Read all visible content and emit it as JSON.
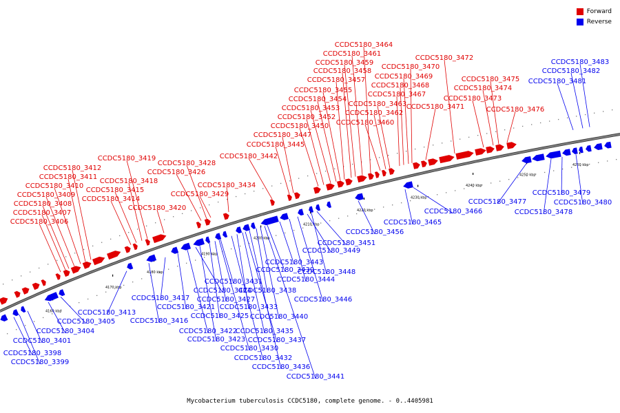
{
  "caption": "Mycobacterium tuberculosis CCDC5180, complete genome. - 0..4405981",
  "legend": [
    {
      "label": "Forward",
      "color": "#e00000"
    },
    {
      "label": "Reverse",
      "color": "#0000ee"
    }
  ],
  "colors": {
    "forward": "#e00000",
    "reverse": "#0000ee",
    "backbone": "#808080"
  },
  "ticks": [
    "4160 kbp",
    "4170 kbp",
    "4180 kbp",
    "4190 kbp",
    "4200 kbp",
    "4210 kbp",
    "4220 kbp",
    "4230 kbp",
    "4240 kbp",
    "4250 kbp",
    "4260 kbp"
  ],
  "forward_genes": [
    "CCDC5180_3406",
    "CCDC5180_3407",
    "CCDC5180_3408",
    "CCDC5180_3409",
    "CCDC5180_3410",
    "CCDC5180_3411",
    "CCDC5180_3412",
    "CCDC5180_3414",
    "CCDC5180_3415",
    "CCDC5180_3418",
    "CCDC5180_3419",
    "CCDC5180_3420",
    "CCDC5180_3426",
    "CCDC5180_3428",
    "CCDC5180_3429",
    "CCDC5180_3434",
    "CCDC5180_3442",
    "CCDC5180_3445",
    "CCDC5180_3447",
    "CCDC5180_3450",
    "CCDC5180_3452",
    "CCDC5180_3453",
    "CCDC5180_3454",
    "CCDC5180_3455",
    "CCDC5180_3457",
    "CCDC5180_3458",
    "CCDC5180_3459",
    "CCDC5180_3461",
    "CCDC5180_3464",
    "CCDC5180_3460",
    "CCDC5180_3462",
    "CCDC5180_3463",
    "CCDC5180_3467",
    "CCDC5180_3468",
    "CCDC5180_3469",
    "CCDC5180_3470",
    "CCDC5180_3471",
    "CCDC5180_3472",
    "CCDC5180_3473",
    "CCDC5180_3474",
    "CCDC5180_3475",
    "CCDC5180_3476"
  ],
  "reverse_genes": [
    "CCDC5180_3398",
    "CCDC5180_3399",
    "CCDC5180_3401",
    "CCDC5180_3404",
    "CCDC5180_3405",
    "CCDC5180_3413",
    "CCDC5180_3416",
    "CCDC5180_3417",
    "CCDC5180_3421",
    "CCDC5180_3422",
    "CCDC5180_3423",
    "CCDC5180_3424",
    "CCDC5180_3425",
    "CCDC5180_3427",
    "CCDC5180_3430",
    "CCDC5180_3431",
    "CCDC5180_3432",
    "CCDC5180_3433",
    "CCDC5180_3435",
    "CCDC5180_3436",
    "CCDC5180_3437",
    "CCDC5180_3438",
    "CCDC5180_3439",
    "CCDC5180_3440",
    "CCDC5180_3441",
    "CCDC5180_3443",
    "CCDC5180_3444",
    "CCDC5180_3446",
    "CCDC5180_3448",
    "CCDC5180_3449",
    "CCDC5180_3451",
    "CCDC5180_3456",
    "CCDC5180_3465",
    "CCDC5180_3466",
    "CCDC5180_3477",
    "CCDC5180_3478",
    "CCDC5180_3479",
    "CCDC5180_3480",
    "CCDC5180_3481",
    "CCDC5180_3482",
    "CCDC5180_3483"
  ]
}
